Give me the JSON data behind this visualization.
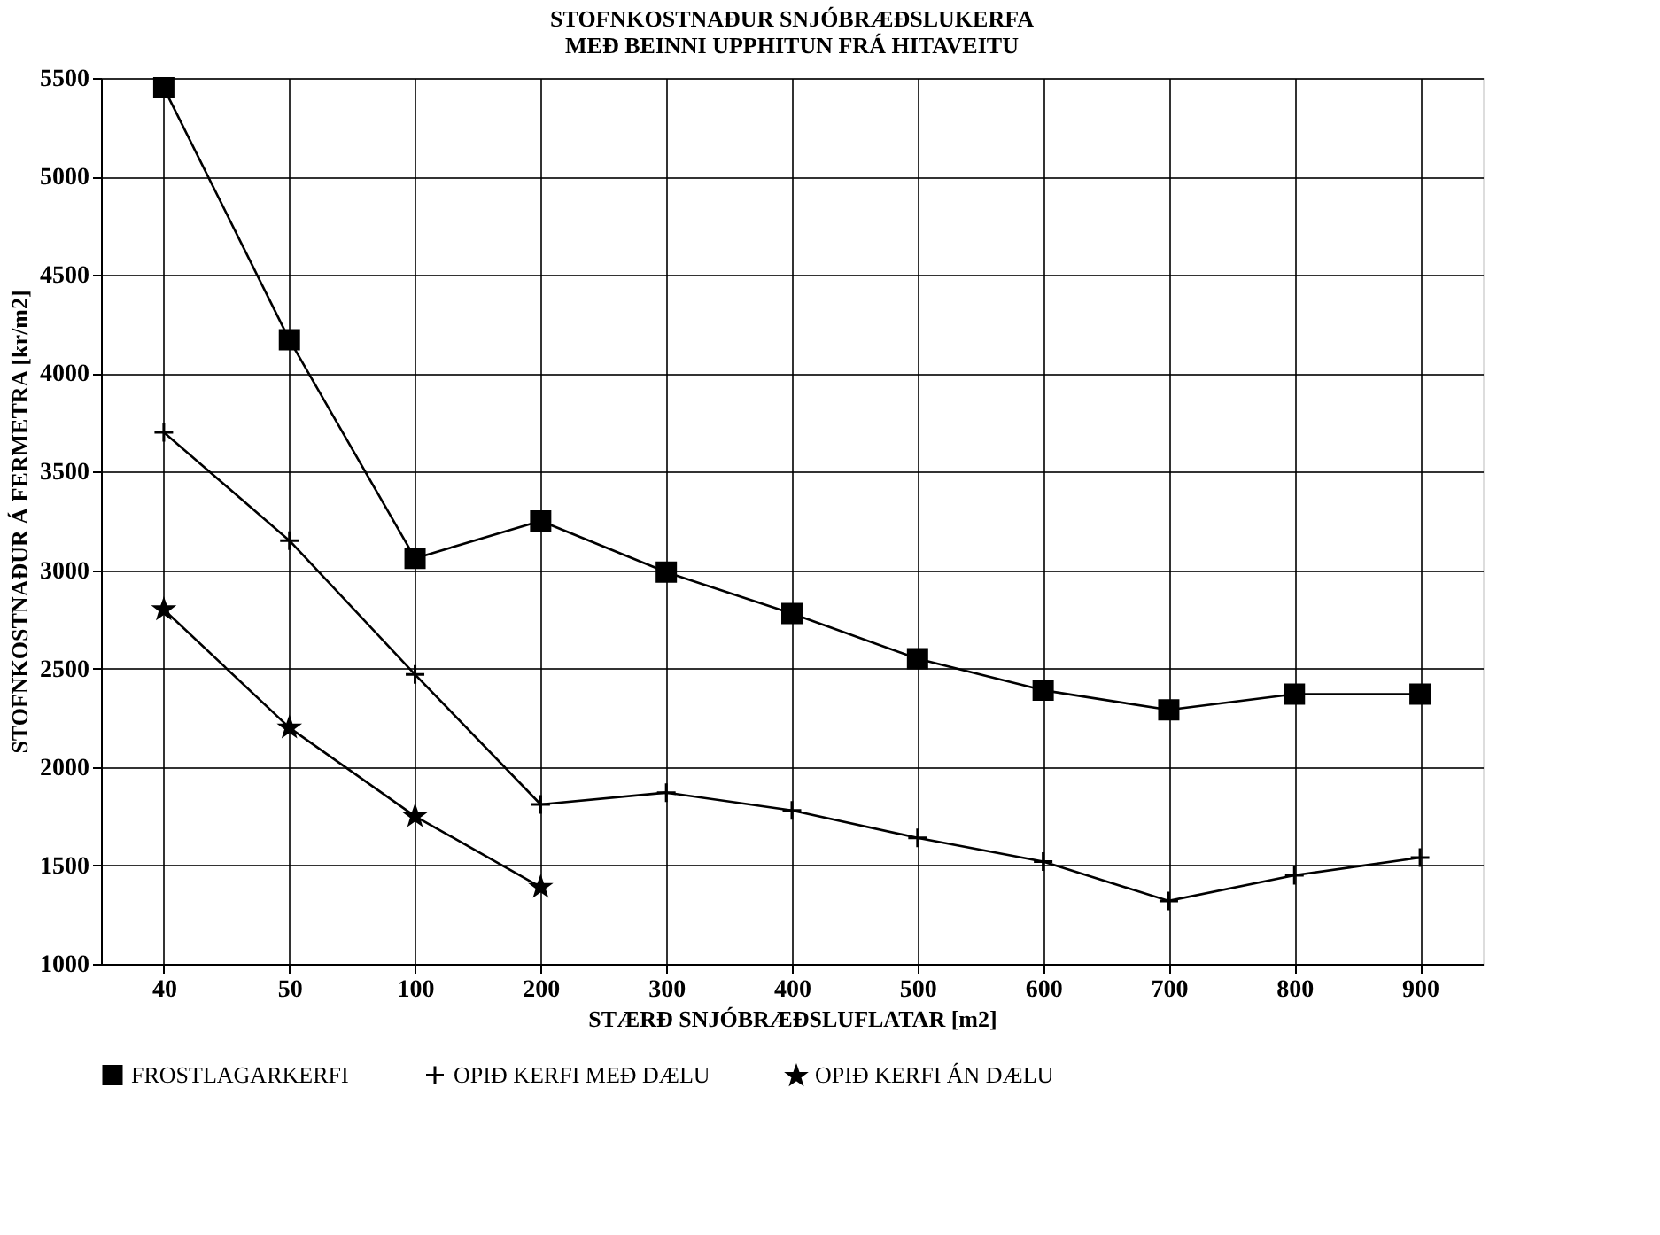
{
  "chart_data": {
    "type": "line",
    "title": "STOFNKOSTNAÐUR SNJÓBRÆÐSLUKERFA\nMEÐ BEINNI UPPHITUN FRÁ HITAVEITU",
    "xlabel": "STÆRÐ SNJÓBRÆÐSLUFLATAR [m2]",
    "ylabel": "STOFNKOSTNAÐUR Á FERMETRA [kr/m2]",
    "categories": [
      "40",
      "50",
      "100",
      "200",
      "300",
      "400",
      "500",
      "600",
      "700",
      "800",
      "900"
    ],
    "series": [
      {
        "name": "FROSTLAGARKERFI",
        "color": "#000000",
        "marker": "square",
        "values": [
          5450,
          4170,
          3060,
          3250,
          2990,
          2780,
          2550,
          2390,
          2290,
          2370,
          2370
        ]
      },
      {
        "name": "OPIÐ KERFI MEÐ DÆLU",
        "color": "#000000",
        "marker": "cross",
        "values": [
          3700,
          3150,
          2470,
          1810,
          1870,
          1780,
          1640,
          1520,
          1320,
          1450,
          1540
        ]
      },
      {
        "name": "OPIÐ KERFI ÁN DÆLU",
        "color": "#000000",
        "marker": "star",
        "values": [
          2800,
          2200,
          1750,
          1390,
          null,
          null,
          null,
          null,
          null,
          null,
          null
        ]
      }
    ],
    "ylim": [
      1000,
      5500
    ],
    "yticks": [
      1000,
      1500,
      2000,
      2500,
      3000,
      3500,
      4000,
      4500,
      5000,
      5500
    ],
    "grid": true,
    "legend": "bottom",
    "line_style": "solid"
  }
}
